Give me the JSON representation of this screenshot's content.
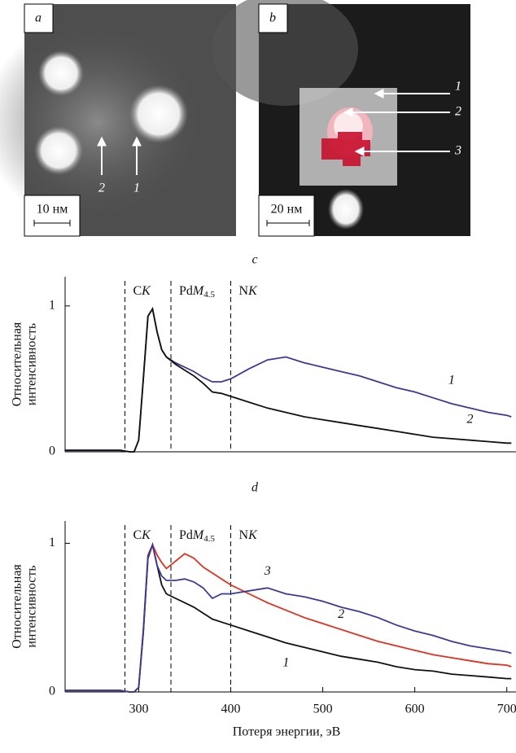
{
  "panels": [
    {
      "letter": "a",
      "scale": "10 нм",
      "arrows": [
        "2",
        "1"
      ]
    },
    {
      "letter": "b",
      "scale": "20 нм",
      "arrows": [
        "1",
        "2",
        "3"
      ]
    }
  ],
  "chart_data": [
    {
      "type": "line",
      "title": "c",
      "ylabel": [
        "Относительная",
        "интенсивность"
      ],
      "xlim": [
        220,
        710
      ],
      "ylim": [
        0,
        1.2
      ],
      "yticks": [
        0,
        1
      ],
      "edges": [
        {
          "energy": 285,
          "element": "C",
          "shell": "K"
        },
        {
          "energy": 335,
          "element": "Pd",
          "shell": "M",
          "subshell": "4.5"
        },
        {
          "energy": 400,
          "element": "N",
          "shell": "K"
        }
      ],
      "x": [
        220,
        240,
        260,
        280,
        290,
        295,
        300,
        305,
        310,
        315,
        320,
        325,
        330,
        340,
        350,
        360,
        370,
        380,
        390,
        400,
        420,
        440,
        460,
        480,
        500,
        520,
        540,
        560,
        580,
        600,
        620,
        640,
        660,
        680,
        700,
        705
      ],
      "series": [
        {
          "name": "1",
          "color": "#3b3a96",
          "values": [
            0.01,
            0.01,
            0.01,
            0.01,
            0,
            0,
            0.08,
            0.5,
            0.93,
            0.98,
            0.82,
            0.7,
            0.65,
            0.61,
            0.58,
            0.55,
            0.51,
            0.48,
            0.48,
            0.5,
            0.57,
            0.63,
            0.65,
            0.61,
            0.58,
            0.55,
            0.52,
            0.48,
            0.44,
            0.41,
            0.37,
            0.33,
            0.3,
            0.27,
            0.25,
            0.24
          ]
        },
        {
          "name": "2",
          "color": "#111111",
          "values": [
            0.01,
            0.01,
            0.01,
            0.01,
            0,
            0,
            0.08,
            0.5,
            0.93,
            0.98,
            0.82,
            0.7,
            0.65,
            0.6,
            0.56,
            0.52,
            0.47,
            0.41,
            0.4,
            0.38,
            0.34,
            0.3,
            0.27,
            0.24,
            0.22,
            0.2,
            0.18,
            0.16,
            0.14,
            0.12,
            0.1,
            0.09,
            0.08,
            0.07,
            0.06,
            0.06
          ]
        }
      ]
    },
    {
      "type": "line",
      "title": "d",
      "ylabel": [
        "Относительная",
        "интенсивность"
      ],
      "xlabel": "Потеря энергии, эВ",
      "xlim": [
        220,
        710
      ],
      "ylim": [
        0,
        1.15
      ],
      "yticks": [
        0,
        1
      ],
      "xticks": [
        300,
        400,
        500,
        600,
        700
      ],
      "edges": [
        {
          "energy": 285,
          "element": "C",
          "shell": "K"
        },
        {
          "energy": 335,
          "element": "Pd",
          "shell": "M",
          "subshell": "4.5"
        },
        {
          "energy": 400,
          "element": "N",
          "shell": "K"
        }
      ],
      "x": [
        220,
        240,
        260,
        280,
        290,
        295,
        300,
        305,
        310,
        315,
        320,
        325,
        330,
        340,
        350,
        360,
        370,
        380,
        390,
        400,
        420,
        440,
        460,
        480,
        500,
        520,
        540,
        560,
        580,
        600,
        620,
        640,
        660,
        680,
        700,
        705
      ],
      "series": [
        {
          "name": "1",
          "color": "#111111",
          "values": [
            0.01,
            0.01,
            0.01,
            0.01,
            0,
            0,
            0.03,
            0.4,
            0.9,
            0.99,
            0.85,
            0.72,
            0.66,
            0.63,
            0.6,
            0.57,
            0.53,
            0.49,
            0.47,
            0.45,
            0.41,
            0.37,
            0.33,
            0.3,
            0.27,
            0.24,
            0.22,
            0.2,
            0.17,
            0.15,
            0.14,
            0.12,
            0.11,
            0.1,
            0.09,
            0.09
          ]
        },
        {
          "name": "2",
          "color": "#e0301e",
          "values": [
            0.01,
            0.01,
            0.01,
            0.01,
            0,
            0,
            0.03,
            0.42,
            0.92,
            0.99,
            0.92,
            0.87,
            0.83,
            0.88,
            0.93,
            0.9,
            0.84,
            0.8,
            0.76,
            0.72,
            0.66,
            0.6,
            0.55,
            0.5,
            0.46,
            0.42,
            0.38,
            0.34,
            0.31,
            0.28,
            0.25,
            0.23,
            0.21,
            0.19,
            0.18,
            0.17
          ]
        },
        {
          "name": "3",
          "color": "#3b3a96",
          "values": [
            0.01,
            0.01,
            0.01,
            0.01,
            0,
            0,
            0.03,
            0.41,
            0.91,
            0.99,
            0.85,
            0.78,
            0.75,
            0.75,
            0.76,
            0.74,
            0.7,
            0.63,
            0.66,
            0.66,
            0.68,
            0.7,
            0.66,
            0.64,
            0.61,
            0.57,
            0.54,
            0.5,
            0.45,
            0.41,
            0.38,
            0.34,
            0.31,
            0.29,
            0.27,
            0.26
          ]
        }
      ]
    }
  ]
}
